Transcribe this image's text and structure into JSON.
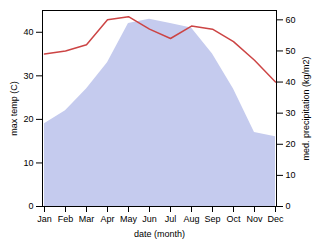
{
  "chart_data": {
    "type": "line",
    "xlabel": "date (month)",
    "ylabel": "max temp (C)",
    "y2label": "med. precipitation (kg/m2)",
    "categories": [
      "Jan",
      "Feb",
      "Mar",
      "Apr",
      "May",
      "Jun",
      "Jul",
      "Aug",
      "Sep",
      "Oct",
      "Nov",
      "Dec"
    ],
    "series": [
      {
        "type": "area",
        "color": "#c5cbee",
        "values": [
          19,
          22,
          27,
          33,
          42,
          43,
          42,
          41,
          35,
          27,
          17,
          16
        ]
      },
      {
        "type": "line",
        "axis": "y2",
        "color": "#cc4444",
        "values": [
          49,
          50,
          52,
          60,
          61,
          57,
          54,
          58,
          57,
          53,
          47,
          40
        ]
      }
    ],
    "ylim": [
      0,
      45
    ],
    "yticks": [
      0,
      10,
      20,
      30,
      40
    ],
    "y2lim": [
      0,
      63
    ],
    "y2ticks": [
      0,
      10,
      20,
      30,
      40,
      50,
      60
    ],
    "grid": false
  }
}
